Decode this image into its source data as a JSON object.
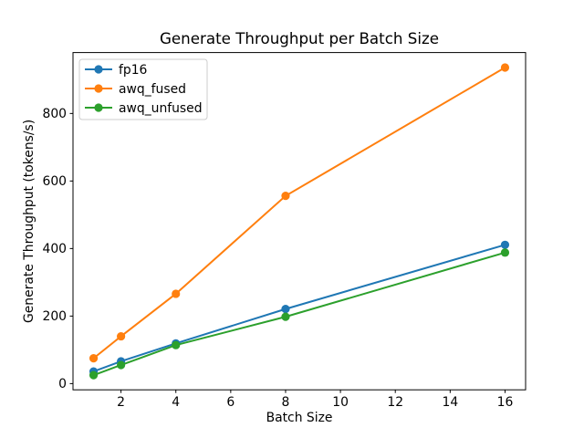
{
  "chart_data": {
    "type": "line",
    "title": "Generate Throughput per Batch Size",
    "xlabel": "Batch Size",
    "ylabel": "Generate Throughput (tokens/s)",
    "x": [
      1,
      2,
      4,
      8,
      16
    ],
    "series": [
      {
        "name": "fp16",
        "color": "#1f77b4",
        "values": [
          36,
          66,
          119,
          221,
          411
        ]
      },
      {
        "name": "awq_fused",
        "color": "#ff7f0e",
        "values": [
          75,
          140,
          266,
          556,
          936
        ]
      },
      {
        "name": "awq_unfused",
        "color": "#2ca02c",
        "values": [
          25,
          55,
          114,
          198,
          388
        ]
      }
    ],
    "xticks": [
      2,
      4,
      6,
      8,
      10,
      12,
      14,
      16
    ],
    "yticks": [
      0,
      200,
      400,
      600,
      800
    ],
    "xlim": [
      0.25,
      16.75
    ],
    "ylim": [
      -18.4,
      980.4
    ],
    "legend_position": "upper left",
    "grid": false,
    "marker": "o",
    "axis_color": "#000000",
    "legend_border_color": "#cccccc",
    "background_color": "#ffffff"
  }
}
